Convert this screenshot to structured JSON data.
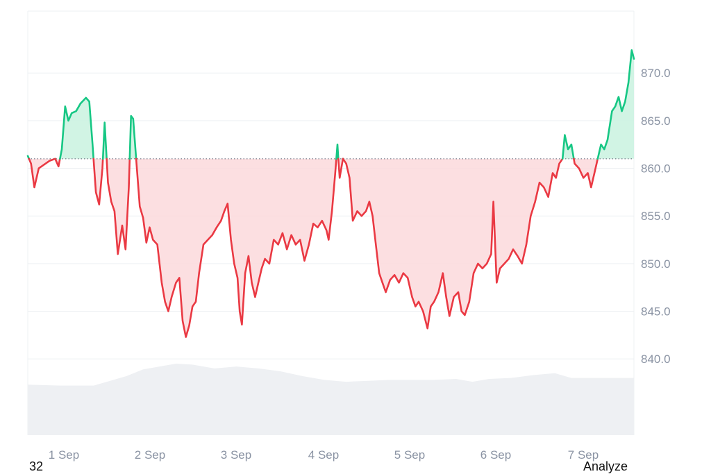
{
  "chart_data": {
    "type": "area",
    "baseline": 861.0,
    "ylim": [
      832.0,
      876.5
    ],
    "yticks": [
      840,
      845,
      850,
      855,
      860,
      865,
      870
    ],
    "ytick_labels": [
      "840.0",
      "845.0",
      "850.0",
      "855.0",
      "860.0",
      "865.0",
      "870.0"
    ],
    "xlim": [
      0,
      7
    ],
    "xticks": [
      0.4,
      1.4,
      2.4,
      3.4,
      4.4,
      5.4,
      6.4
    ],
    "xtick_labels": [
      "1 Sep",
      "2 Sep",
      "3 Sep",
      "4 Sep",
      "5 Sep",
      "6 Sep",
      "7 Sep"
    ],
    "colors": {
      "up": "#16c784",
      "down": "#ea3943",
      "up_fill": "#c9f2df",
      "down_fill": "#fbd9dc",
      "volume": "#eef0f3",
      "grid": "#eef0f3",
      "baseline": "#6b7280"
    },
    "price": [
      [
        0.0,
        861.3
      ],
      [
        0.03,
        860.5
      ],
      [
        0.06,
        858.0
      ],
      [
        0.1,
        860.0
      ],
      [
        0.15,
        860.4
      ],
      [
        0.2,
        860.8
      ],
      [
        0.25,
        861.0
      ],
      [
        0.28,
        860.2
      ],
      [
        0.31,
        862.0
      ],
      [
        0.34,
        866.5
      ],
      [
        0.37,
        865.0
      ],
      [
        0.4,
        865.8
      ],
      [
        0.44,
        866.0
      ],
      [
        0.48,
        866.8
      ],
      [
        0.53,
        867.4
      ],
      [
        0.56,
        867.0
      ],
      [
        0.59,
        862.5
      ],
      [
        0.62,
        857.5
      ],
      [
        0.65,
        856.2
      ],
      [
        0.68,
        860.0
      ],
      [
        0.7,
        864.8
      ],
      [
        0.73,
        858.5
      ],
      [
        0.76,
        856.5
      ],
      [
        0.79,
        855.5
      ],
      [
        0.82,
        851.0
      ],
      [
        0.86,
        854.0
      ],
      [
        0.89,
        851.5
      ],
      [
        0.92,
        858.0
      ],
      [
        0.94,
        865.5
      ],
      [
        0.96,
        865.2
      ],
      [
        0.99,
        860.5
      ],
      [
        1.02,
        856.0
      ],
      [
        1.05,
        854.8
      ],
      [
        1.08,
        852.2
      ],
      [
        1.11,
        853.8
      ],
      [
        1.14,
        852.5
      ],
      [
        1.18,
        852.0
      ],
      [
        1.22,
        848.0
      ],
      [
        1.25,
        846.0
      ],
      [
        1.28,
        845.0
      ],
      [
        1.31,
        846.5
      ],
      [
        1.35,
        848.0
      ],
      [
        1.38,
        848.5
      ],
      [
        1.41,
        844.0
      ],
      [
        1.44,
        842.3
      ],
      [
        1.47,
        843.5
      ],
      [
        1.5,
        845.5
      ],
      [
        1.53,
        846.0
      ],
      [
        1.56,
        849.0
      ],
      [
        1.6,
        852.0
      ],
      [
        1.64,
        852.5
      ],
      [
        1.68,
        853.0
      ],
      [
        1.72,
        853.8
      ],
      [
        1.76,
        854.5
      ],
      [
        1.79,
        855.5
      ],
      [
        1.82,
        856.3
      ],
      [
        1.85,
        852.5
      ],
      [
        1.88,
        850.0
      ],
      [
        1.91,
        848.5
      ],
      [
        1.93,
        845.0
      ],
      [
        1.95,
        843.6
      ],
      [
        1.98,
        849.0
      ],
      [
        2.01,
        850.8
      ],
      [
        2.04,
        848.0
      ],
      [
        2.07,
        846.5
      ],
      [
        2.1,
        848.0
      ],
      [
        2.13,
        849.5
      ],
      [
        2.16,
        850.5
      ],
      [
        2.2,
        850.0
      ],
      [
        2.24,
        852.5
      ],
      [
        2.28,
        852.0
      ],
      [
        2.32,
        853.2
      ],
      [
        2.36,
        851.5
      ],
      [
        2.4,
        853.0
      ],
      [
        2.44,
        852.0
      ],
      [
        2.48,
        852.5
      ],
      [
        2.52,
        850.3
      ],
      [
        2.56,
        852.0
      ],
      [
        2.6,
        854.2
      ],
      [
        2.64,
        853.8
      ],
      [
        2.68,
        854.5
      ],
      [
        2.72,
        853.5
      ],
      [
        2.74,
        852.5
      ],
      [
        2.77,
        855.5
      ],
      [
        2.8,
        859.5
      ],
      [
        2.82,
        862.5
      ],
      [
        2.84,
        859.0
      ],
      [
        2.87,
        861.0
      ],
      [
        2.9,
        860.5
      ],
      [
        2.93,
        859.0
      ],
      [
        2.96,
        854.5
      ],
      [
        3.0,
        855.5
      ],
      [
        3.04,
        855.0
      ],
      [
        3.08,
        855.5
      ],
      [
        3.11,
        856.5
      ],
      [
        3.14,
        855.0
      ],
      [
        3.17,
        852.0
      ],
      [
        3.2,
        849.0
      ],
      [
        3.23,
        848.0
      ],
      [
        3.26,
        847.0
      ],
      [
        3.3,
        848.3
      ],
      [
        3.34,
        848.8
      ],
      [
        3.38,
        848.0
      ],
      [
        3.42,
        849.0
      ],
      [
        3.46,
        848.5
      ],
      [
        3.5,
        846.5
      ],
      [
        3.53,
        845.5
      ],
      [
        3.56,
        846.0
      ],
      [
        3.6,
        845.0
      ],
      [
        3.64,
        843.2
      ],
      [
        3.67,
        845.5
      ],
      [
        3.7,
        846.0
      ],
      [
        3.74,
        847.0
      ],
      [
        3.78,
        849.0
      ],
      [
        3.81,
        846.5
      ],
      [
        3.84,
        844.5
      ],
      [
        3.88,
        846.5
      ],
      [
        3.92,
        847.0
      ],
      [
        3.95,
        845.0
      ],
      [
        3.98,
        844.6
      ],
      [
        4.02,
        846.0
      ],
      [
        4.06,
        849.0
      ],
      [
        4.1,
        850.0
      ],
      [
        4.14,
        849.5
      ],
      [
        4.18,
        850.0
      ],
      [
        4.22,
        851.0
      ],
      [
        4.24,
        856.5
      ],
      [
        4.27,
        848.0
      ],
      [
        4.3,
        849.5
      ],
      [
        4.34,
        850.0
      ],
      [
        4.38,
        850.5
      ],
      [
        4.42,
        851.5
      ],
      [
        4.46,
        850.8
      ],
      [
        4.5,
        850.0
      ],
      [
        4.54,
        852.0
      ],
      [
        4.58,
        855.0
      ],
      [
        4.62,
        856.5
      ],
      [
        4.66,
        858.5
      ],
      [
        4.7,
        858.0
      ],
      [
        4.74,
        857.0
      ],
      [
        4.78,
        859.5
      ],
      [
        4.81,
        859.0
      ],
      [
        4.84,
        860.5
      ],
      [
        4.87,
        861.0
      ],
      [
        4.89,
        863.5
      ],
      [
        4.92,
        862.0
      ],
      [
        4.95,
        862.5
      ],
      [
        4.98,
        860.5
      ],
      [
        5.02,
        860.0
      ],
      [
        5.06,
        859.0
      ],
      [
        5.1,
        859.5
      ],
      [
        5.13,
        858.0
      ],
      [
        5.16,
        859.5
      ],
      [
        5.19,
        861.0
      ],
      [
        5.22,
        862.5
      ],
      [
        5.25,
        862.0
      ],
      [
        5.28,
        863.0
      ],
      [
        5.32,
        866.0
      ],
      [
        5.35,
        866.5
      ],
      [
        5.38,
        867.5
      ],
      [
        5.41,
        866.0
      ],
      [
        5.44,
        867.0
      ],
      [
        5.47,
        869.0
      ],
      [
        5.5,
        872.4
      ],
      [
        5.52,
        871.5
      ]
    ],
    "volume": [
      [
        0.0,
        837.3
      ],
      [
        0.3,
        837.2
      ],
      [
        0.6,
        837.2
      ],
      [
        0.9,
        838.2
      ],
      [
        1.05,
        838.9
      ],
      [
        1.2,
        839.2
      ],
      [
        1.35,
        839.5
      ],
      [
        1.5,
        839.4
      ],
      [
        1.7,
        839.0
      ],
      [
        1.9,
        839.2
      ],
      [
        2.1,
        839.0
      ],
      [
        2.3,
        838.7
      ],
      [
        2.5,
        838.2
      ],
      [
        2.7,
        837.8
      ],
      [
        2.9,
        837.6
      ],
      [
        3.1,
        837.7
      ],
      [
        3.3,
        837.8
      ],
      [
        3.5,
        837.8
      ],
      [
        3.7,
        837.8
      ],
      [
        3.9,
        837.9
      ],
      [
        4.05,
        837.6
      ],
      [
        4.2,
        837.9
      ],
      [
        4.4,
        838.0
      ],
      [
        4.6,
        838.3
      ],
      [
        4.8,
        838.5
      ],
      [
        4.95,
        838.0
      ],
      [
        5.1,
        838.0
      ],
      [
        5.3,
        838.0
      ],
      [
        5.52,
        838.0
      ]
    ]
  },
  "footer": {
    "left_text": "32",
    "right_text": "Analyze"
  }
}
